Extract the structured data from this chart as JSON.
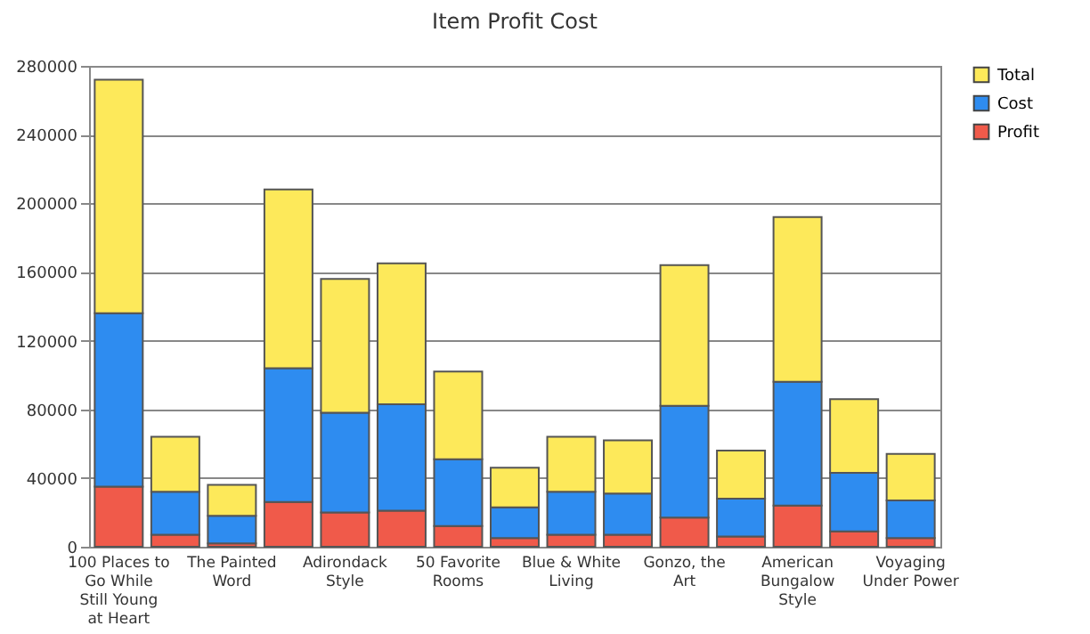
{
  "chart_data": {
    "type": "bar",
    "title": "Item Profit Cost",
    "categories": [
      "100 Places to Go While Still Young at Heart",
      null,
      "The Painted Word",
      null,
      "Adirondack Style",
      null,
      "50 Favorite Rooms",
      null,
      "Blue & White Living",
      null,
      "Gonzo, the Art",
      null,
      "American Bungalow Style",
      null,
      "Voyaging Under Power"
    ],
    "series": [
      {
        "name": "Profit",
        "color": "#f05a4a",
        "values": [
          35000,
          7000,
          2000,
          26000,
          20000,
          21000,
          12000,
          5000,
          7000,
          7000,
          17000,
          6000,
          24000,
          9000,
          5000
        ]
      },
      {
        "name": "Cost",
        "color": "#2e8cf0",
        "values": [
          101000,
          25000,
          16000,
          78000,
          58000,
          62000,
          39000,
          18000,
          25000,
          24000,
          65000,
          22000,
          72000,
          34000,
          22000
        ]
      },
      {
        "name": "Total",
        "color": "#fde95a",
        "values": [
          136000,
          32000,
          18000,
          104000,
          78000,
          82000,
          51000,
          23000,
          32000,
          31000,
          82000,
          28000,
          96000,
          43000,
          27000
        ]
      }
    ],
    "stacked": true,
    "ylim": [
      0,
      280000
    ],
    "yticks": [
      0,
      40000,
      80000,
      120000,
      160000,
      200000,
      240000,
      280000
    ],
    "grid": "y",
    "legend": "right"
  }
}
